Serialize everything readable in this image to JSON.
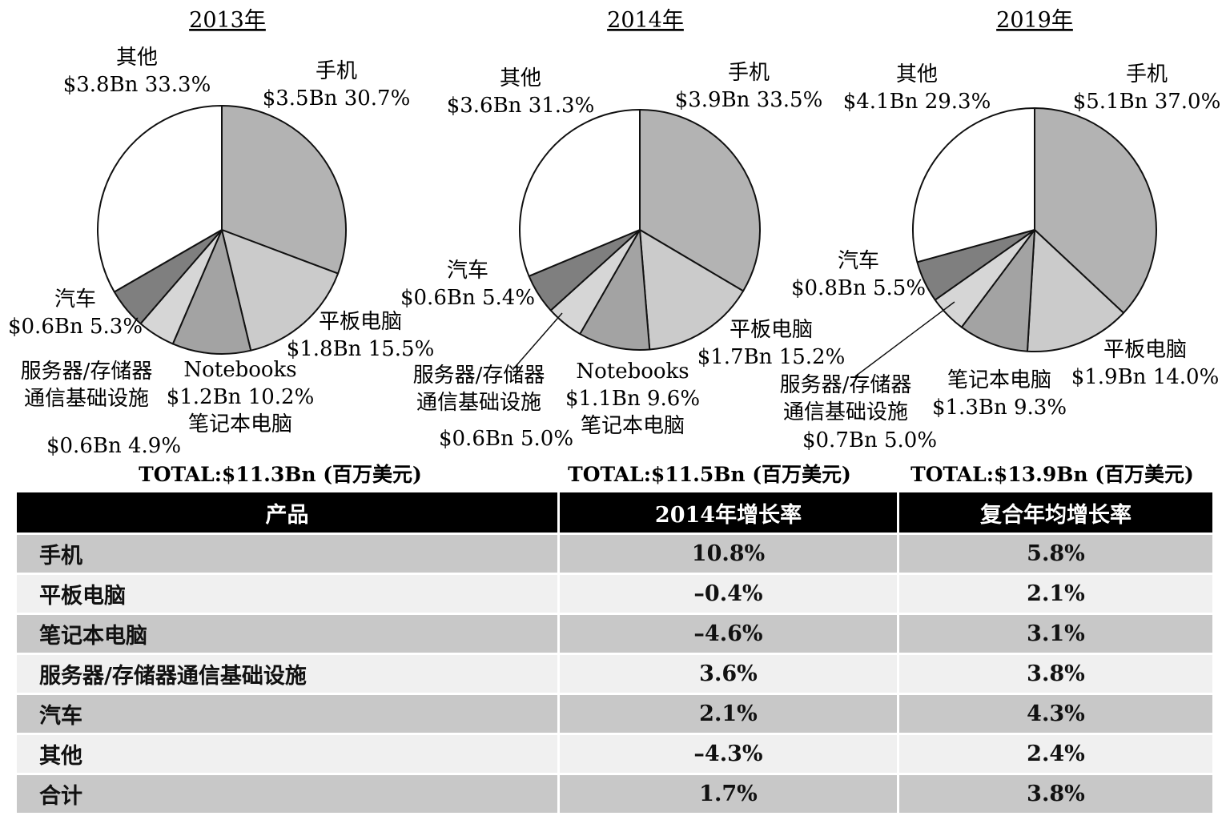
{
  "chart_data": [
    {
      "type": "pie",
      "title": "2013年",
      "total_label": "TOTAL:$11.3Bn (百万美元)",
      "slices": [
        {
          "name": "手机",
          "label_lines": [
            "手机",
            "$3.5Bn 30.7%"
          ],
          "value": 3.5,
          "percent": 30.7,
          "color": "#b3b3b3"
        },
        {
          "name": "平板电脑",
          "label_lines": [
            "平板电脑",
            "$1.8Bn 15.5%"
          ],
          "value": 1.8,
          "percent": 15.5,
          "color": "#cbcbcb"
        },
        {
          "name": "Notebooks 笔记本电脑",
          "label_lines": [
            "Notebooks",
            "$1.2Bn 10.2%",
            "笔记本电脑"
          ],
          "value": 1.2,
          "percent": 10.2,
          "color": "#a3a3a3"
        },
        {
          "name": "服务器/存储器通信基础设施",
          "label_lines": [
            "服务器/存储器",
            "通信基础设施",
            "$0.6Bn  4.9%"
          ],
          "value": 0.6,
          "percent": 4.9,
          "color": "#d6d6d6"
        },
        {
          "name": "汽车",
          "label_lines": [
            "汽车",
            "$0.6Bn 5.3%"
          ],
          "value": 0.6,
          "percent": 5.3,
          "color": "#7f7f7f"
        },
        {
          "name": "其他",
          "label_lines": [
            "其他",
            "$3.8Bn 33.3%"
          ],
          "value": 3.8,
          "percent": 33.3,
          "color": "#ffffff"
        }
      ]
    },
    {
      "type": "pie",
      "title": "2014年",
      "total_label": "TOTAL:$11.5Bn (百万美元)",
      "slices": [
        {
          "name": "手机",
          "label_lines": [
            "手机",
            "$3.9Bn 33.5%"
          ],
          "value": 3.9,
          "percent": 33.5,
          "color": "#b3b3b3"
        },
        {
          "name": "平板电脑",
          "label_lines": [
            "平板电脑",
            "$1.7Bn 15.2%"
          ],
          "value": 1.7,
          "percent": 15.2,
          "color": "#cbcbcb"
        },
        {
          "name": "Notebooks 笔记本电脑",
          "label_lines": [
            "Notebooks",
            "$1.1Bn 9.6%",
            "笔记本电脑"
          ],
          "value": 1.1,
          "percent": 9.6,
          "color": "#a3a3a3"
        },
        {
          "name": "服务器/存储器通信基础设施",
          "label_lines": [
            "服务器/存储器",
            "通信基础设施",
            "$0.6Bn  5.0%"
          ],
          "value": 0.6,
          "percent": 5.0,
          "color": "#d6d6d6"
        },
        {
          "name": "汽车",
          "label_lines": [
            "汽车",
            "$0.6Bn 5.4%"
          ],
          "value": 0.6,
          "percent": 5.4,
          "color": "#7f7f7f"
        },
        {
          "name": "其他",
          "label_lines": [
            "其他",
            "$3.6Bn 31.3%"
          ],
          "value": 3.6,
          "percent": 31.3,
          "color": "#ffffff"
        }
      ]
    },
    {
      "type": "pie",
      "title": "2019年",
      "total_label": "TOTAL:$13.9Bn (百万美元)",
      "slices": [
        {
          "name": "手机",
          "label_lines": [
            "手机",
            "$5.1Bn 37.0%"
          ],
          "value": 5.1,
          "percent": 37.0,
          "color": "#b3b3b3"
        },
        {
          "name": "平板电脑",
          "label_lines": [
            "平板电脑",
            "$1.9Bn 14.0%"
          ],
          "value": 1.9,
          "percent": 14.0,
          "color": "#cbcbcb"
        },
        {
          "name": "笔记本电脑",
          "label_lines": [
            "笔记本电脑",
            "$1.3Bn 9.3%"
          ],
          "value": 1.3,
          "percent": 9.3,
          "color": "#a3a3a3"
        },
        {
          "name": "服务器/存储器通信基础设施",
          "label_lines": [
            "服务器/存储器",
            "通信基础设施",
            "$0.7Bn  5.0%"
          ],
          "value": 0.7,
          "percent": 5.0,
          "color": "#d6d6d6"
        },
        {
          "name": "汽车",
          "label_lines": [
            "汽车",
            "$0.8Bn 5.5%"
          ],
          "value": 0.8,
          "percent": 5.5,
          "color": "#7f7f7f"
        },
        {
          "name": "其他",
          "label_lines": [
            "其他",
            "$4.1Bn 29.3%"
          ],
          "value": 4.1,
          "percent": 29.3,
          "color": "#ffffff"
        }
      ]
    },
    {
      "type": "table",
      "columns": [
        "产品",
        "2014年增长率",
        "复合年均增长率"
      ],
      "rows": [
        [
          "手机",
          "10.8%",
          "5.8%"
        ],
        [
          "平板电脑",
          "–0.4%",
          "2.1%"
        ],
        [
          "笔记本电脑",
          "–4.6%",
          "3.1%"
        ],
        [
          "服务器/存储器通信基础设施",
          "3.6%",
          "3.8%"
        ],
        [
          "汽车",
          "2.1%",
          "4.3%"
        ],
        [
          "其他",
          "–4.3%",
          "2.4%"
        ],
        [
          "合计",
          "1.7%",
          "3.8%"
        ]
      ]
    }
  ]
}
